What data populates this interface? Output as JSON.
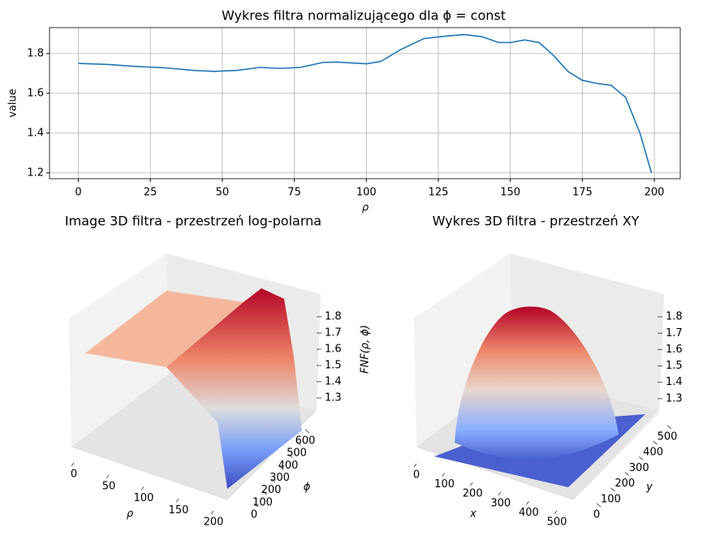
{
  "chart_data": [
    {
      "type": "line",
      "title": "Wykres filtra normalizującego dla ϕ = const",
      "x_label": "ρ",
      "y_label": "value",
      "x": [
        0,
        10,
        20,
        30,
        40,
        47,
        55,
        63,
        70,
        77,
        85,
        90,
        100,
        105,
        112,
        120,
        128,
        134,
        140,
        146,
        150,
        155,
        160,
        165,
        170,
        175,
        180,
        185,
        190,
        195,
        199
      ],
      "values": [
        1.75,
        1.745,
        1.735,
        1.728,
        1.715,
        1.71,
        1.715,
        1.73,
        1.725,
        1.73,
        1.755,
        1.757,
        1.748,
        1.76,
        1.82,
        1.875,
        1.888,
        1.895,
        1.885,
        1.855,
        1.855,
        1.868,
        1.855,
        1.79,
        1.71,
        1.665,
        1.65,
        1.64,
        1.58,
        1.4,
        1.2
      ],
      "color": "#1f77b4",
      "xlim": [
        -10,
        209
      ],
      "ylim": [
        1.171,
        1.93
      ],
      "xticks": [
        0,
        25,
        50,
        75,
        100,
        125,
        150,
        175,
        200
      ],
      "yticks": [
        1.2,
        1.4,
        1.6,
        1.8
      ],
      "grid": true
    },
    {
      "type": "surface3d",
      "title": "Image 3D filtra - przestrzeń log-polarna",
      "x_label": "ρ",
      "y_label": "ϕ",
      "z_label": "FNF(ρ, ϕ)",
      "xlim": [
        0,
        200
      ],
      "xticks": [
        0,
        50,
        100,
        150,
        200
      ],
      "ylim": [
        0,
        600
      ],
      "yticks": [
        0,
        100,
        200,
        300,
        400,
        500,
        600
      ],
      "zlim": [
        1.2,
        1.9
      ],
      "zticks": [
        1.3,
        1.4,
        1.5,
        1.6,
        1.7,
        1.8
      ]
    },
    {
      "type": "surface3d",
      "title": "Wykres 3D filtra - przestrzeń XY",
      "x_label": "x",
      "y_label": "y",
      "xlim": [
        0,
        500
      ],
      "xticks": [
        0,
        100,
        200,
        300,
        400,
        500
      ],
      "ylim": [
        0,
        500
      ],
      "yticks": [
        0,
        100,
        200,
        300,
        400,
        500
      ],
      "zlim": [
        1.2,
        1.9
      ],
      "zticks": [
        1.3,
        1.4,
        1.5,
        1.6,
        1.7,
        1.8
      ]
    }
  ]
}
